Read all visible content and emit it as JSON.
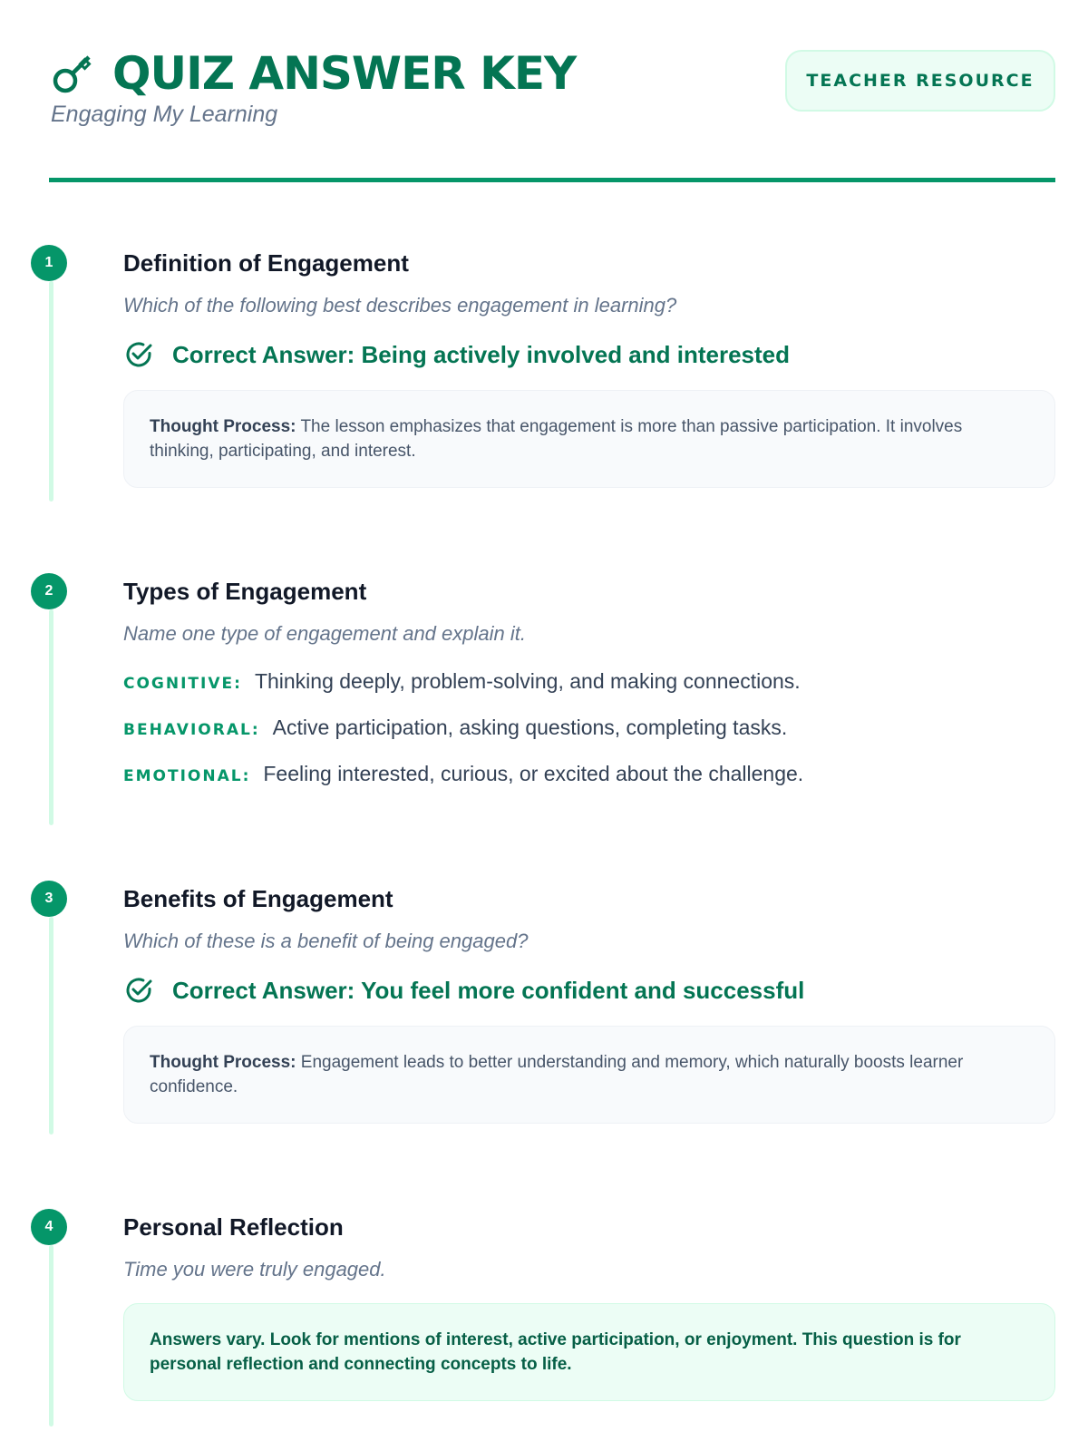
{
  "header": {
    "title": "QUIZ ANSWER KEY",
    "subtitle": "Engaging My Learning",
    "badge": "TEACHER RESOURCE",
    "icon": "key-icon"
  },
  "colors": {
    "accent": "#059669",
    "dark_accent": "#047553",
    "timeline": "#d1fae5"
  },
  "sections": [
    {
      "number": "1",
      "title": "Definition of Engagement",
      "question": "Which of the following best describes engagement in learning?",
      "correct": "Correct Answer: Being actively involved and interested",
      "thought_label": "Thought Process:",
      "thought": " The lesson emphasizes that engagement is more than passive participation. It involves thinking, participating, and interest."
    },
    {
      "number": "2",
      "title": "Types of Engagement",
      "question": "Name one type of engagement and explain it.",
      "items": [
        {
          "label": "COGNITIVE:",
          "text": "Thinking deeply, problem-solving, and making connections."
        },
        {
          "label": "BEHAVIORAL:",
          "text": "Active participation, asking questions, completing tasks."
        },
        {
          "label": "EMOTIONAL:",
          "text": "Feeling interested, curious, or excited about the challenge."
        }
      ]
    },
    {
      "number": "3",
      "title": "Benefits of Engagement",
      "question": "Which of these is a benefit of being engaged?",
      "correct": "Correct Answer: You feel more confident and successful",
      "thought_label": "Thought Process:",
      "thought": " Engagement leads to better understanding and memory, which naturally boosts learner confidence."
    },
    {
      "number": "4",
      "title": "Personal Reflection",
      "question": "Time you were truly engaged.",
      "note": "Answers vary. Look for mentions of interest, active participation, or enjoyment. This question is for personal reflection and connecting concepts to life."
    }
  ]
}
